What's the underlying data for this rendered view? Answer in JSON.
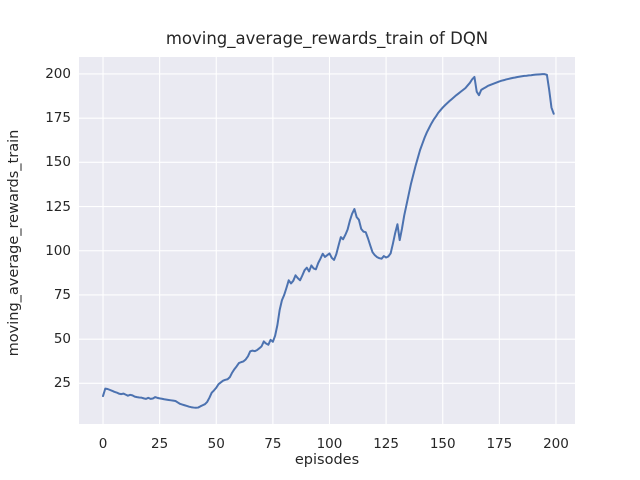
{
  "chart_data": {
    "type": "line",
    "title": "moving_average_rewards_train of DQN",
    "xlabel": "episodes",
    "ylabel": "moving_average_rewards_train",
    "style": "seaborn-darkgrid",
    "grid": true,
    "legend_position": "none",
    "line_color": "#4c72b0",
    "plot_bg_color": "#eaeaf2",
    "grid_color": "#ffffff",
    "text_color": "#262626",
    "x_start": 0,
    "x_step": 1,
    "xlim": [
      -10.6,
      208.4
    ],
    "ylim": [
      2.0,
      209.6
    ],
    "x_ticks": [
      0,
      25,
      50,
      75,
      100,
      125,
      150,
      175,
      200
    ],
    "y_ticks": [
      25,
      50,
      75,
      100,
      125,
      150,
      175,
      200
    ],
    "values": [
      17.8,
      22.0,
      21.8,
      21.3,
      20.8,
      20.2,
      19.8,
      19.2,
      18.9,
      19.2,
      18.6,
      18.0,
      18.5,
      18.2,
      17.5,
      17.2,
      17.0,
      16.9,
      16.5,
      16.2,
      16.8,
      16.2,
      16.4,
      17.2,
      16.8,
      16.5,
      16.3,
      16.0,
      15.8,
      15.6,
      15.4,
      15.2,
      15.0,
      14.2,
      13.4,
      13.0,
      12.6,
      12.2,
      11.8,
      11.5,
      11.3,
      11.2,
      11.3,
      12.0,
      12.6,
      13.2,
      14.5,
      16.9,
      19.7,
      21.0,
      22.5,
      24.5,
      25.5,
      26.5,
      27.0,
      27.3,
      28.5,
      31.0,
      33.0,
      34.6,
      36.5,
      37.0,
      37.4,
      38.5,
      40.3,
      43.1,
      43.5,
      43.2,
      43.8,
      44.8,
      45.9,
      48.7,
      47.5,
      46.8,
      49.6,
      48.5,
      52.0,
      58.0,
      66.5,
      72.0,
      75.0,
      79.0,
      83.3,
      81.5,
      83.0,
      86.1,
      84.5,
      83.3,
      86.0,
      89.0,
      90.4,
      88.3,
      91.7,
      90.0,
      89.5,
      93.0,
      95.5,
      98.3,
      96.5,
      97.5,
      98.5,
      96.0,
      94.8,
      98.0,
      103.0,
      107.7,
      106.5,
      109.0,
      112.0,
      117.0,
      121.0,
      123.6,
      119.0,
      117.5,
      112.4,
      110.8,
      110.5,
      107.0,
      103.0,
      99.2,
      97.5,
      96.4,
      95.8,
      95.5,
      97.0,
      96.2,
      96.8,
      98.5,
      104.0,
      110.0,
      115.0,
      106.0,
      112.5,
      120.0,
      126.0,
      132.0,
      138.0,
      143.0,
      148.0,
      152.5,
      157.0,
      160.5,
      164.0,
      167.0,
      169.5,
      172.0,
      174.2,
      176.0,
      178.0,
      179.5,
      181.0,
      182.3,
      183.5,
      184.7,
      185.8,
      186.9,
      188.0,
      189.0,
      190.0,
      191.0,
      192.0,
      193.5,
      195.0,
      197.0,
      198.3,
      190.0,
      188.0,
      191.0,
      191.8,
      192.5,
      193.3,
      193.8,
      194.3,
      194.8,
      195.3,
      195.8,
      196.2,
      196.5,
      196.9,
      197.2,
      197.5,
      197.8,
      198.0,
      198.3,
      198.5,
      198.7,
      198.9,
      199.0,
      199.2,
      199.3,
      199.5,
      199.6,
      199.7,
      199.8,
      199.9,
      199.9,
      199.5,
      191.0,
      181.0,
      177.5
    ]
  }
}
